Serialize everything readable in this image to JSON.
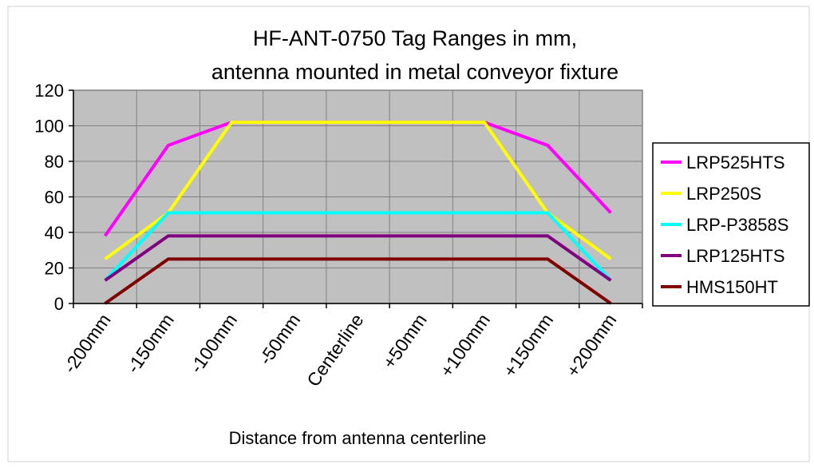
{
  "chart_data": {
    "type": "line",
    "title": [
      "HF-ANT-0750 Tag Ranges in mm,",
      "antenna mounted in metal conveyor fixture"
    ],
    "xlabel": "Distance from antenna centerline",
    "ylabel": "",
    "categories": [
      "-200mm",
      "-150mm",
      "-100mm",
      "-50mm",
      "Centerline",
      "+50mm",
      "+100mm",
      "+150mm",
      "+200mm"
    ],
    "ylim": [
      0,
      120
    ],
    "yticks": [
      0,
      20,
      40,
      60,
      80,
      100,
      120
    ],
    "grid": true,
    "legend_position": "right",
    "plot_background": "#c0c0c0",
    "series": [
      {
        "name": "LRP525HTS",
        "color": "#ff00ff",
        "values": [
          38,
          89,
          102,
          102,
          102,
          102,
          102,
          89,
          51
        ]
      },
      {
        "name": "LRP250S",
        "color": "#ffff00",
        "values": [
          25,
          51,
          102,
          102,
          102,
          102,
          102,
          51,
          25
        ]
      },
      {
        "name": "LRP-P3858S",
        "color": "#00ffff",
        "values": [
          13,
          51,
          51,
          51,
          51,
          51,
          51,
          51,
          13
        ]
      },
      {
        "name": "LRP125HTS",
        "color": "#800080",
        "values": [
          13,
          38,
          38,
          38,
          38,
          38,
          38,
          38,
          13
        ]
      },
      {
        "name": "HMS150HT",
        "color": "#800000",
        "values": [
          0,
          25,
          25,
          25,
          25,
          25,
          25,
          25,
          0
        ]
      }
    ]
  }
}
